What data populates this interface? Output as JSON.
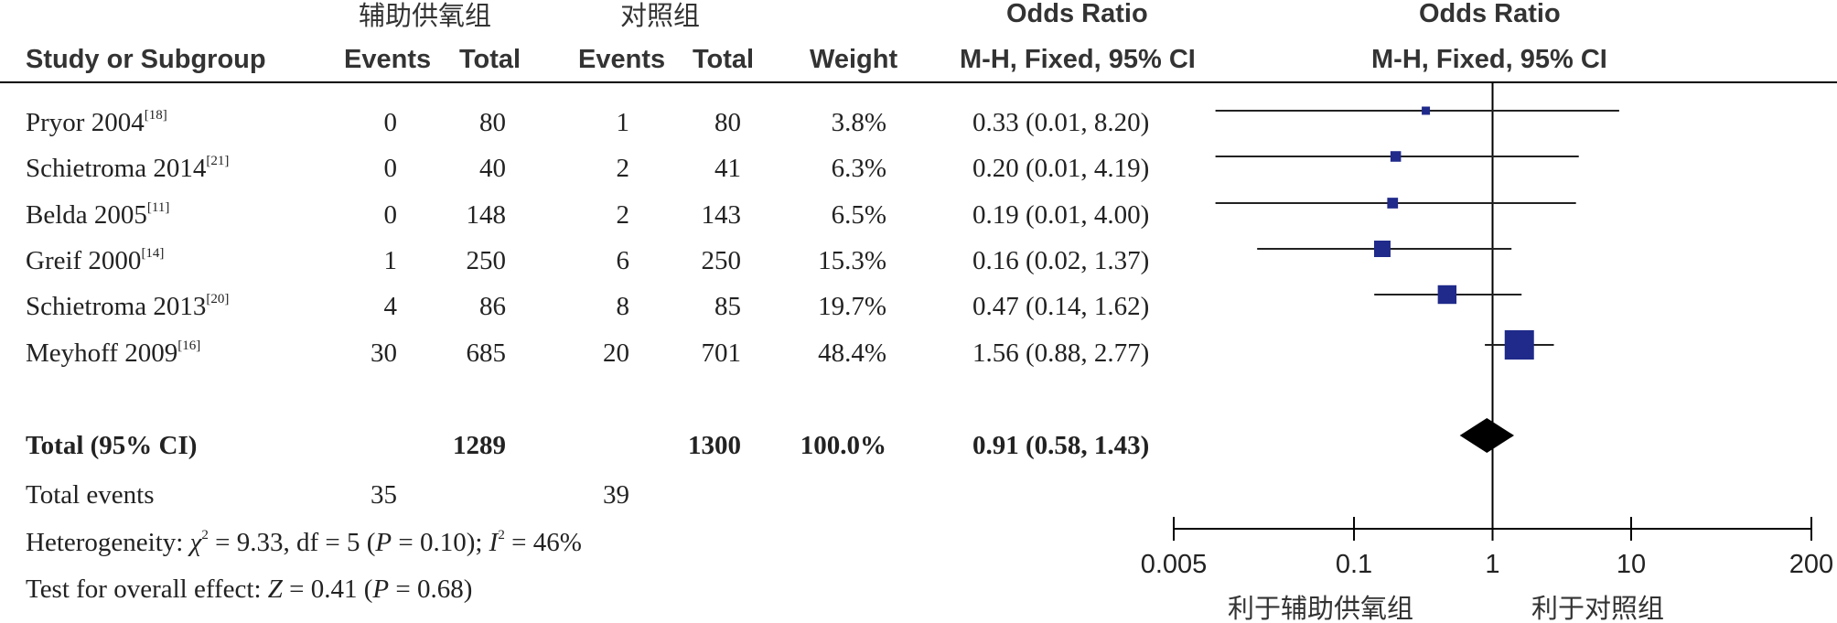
{
  "headers": {
    "group1": "辅助供氧组",
    "group2": "对照组",
    "or_title_left": "Odds Ratio",
    "or_title_right": "Odds Ratio",
    "study": "Study or Subgroup",
    "events1": "Events",
    "total1": "Total",
    "events2": "Events",
    "total2": "Total",
    "weight": "Weight",
    "method_left": "M-H, Fixed, 95% CI",
    "method_right": "M-H, Fixed, 95% CI"
  },
  "studies": [
    {
      "name": "Pryor 2004",
      "ref": "[18]",
      "e1": "0",
      "t1": "80",
      "e2": "1",
      "t2": "80",
      "weight": "3.8%",
      "ci": "0.33 (0.01, 8.20)"
    },
    {
      "name": "Schietroma 2014",
      "ref": "[21]",
      "e1": "0",
      "t1": "40",
      "e2": "2",
      "t2": "41",
      "weight": "6.3%",
      "ci": "0.20 (0.01, 4.19)"
    },
    {
      "name": "Belda 2005",
      "ref": "[11]",
      "e1": "0",
      "t1": "148",
      "e2": "2",
      "t2": "143",
      "weight": "6.5%",
      "ci": "0.19 (0.01, 4.00)"
    },
    {
      "name": "Greif 2000",
      "ref": "[14]",
      "e1": "1",
      "t1": "250",
      "e2": "6",
      "t2": "250",
      "weight": "15.3%",
      "ci": "0.16 (0.02, 1.37)"
    },
    {
      "name": "Schietroma 2013",
      "ref": "[20]",
      "e1": "4",
      "t1": "86",
      "e2": "8",
      "t2": "85",
      "weight": "19.7%",
      "ci": "0.47 (0.14, 1.62)"
    },
    {
      "name": "Meyhoff 2009",
      "ref": "[16]",
      "e1": "30",
      "t1": "685",
      "e2": "20",
      "t2": "701",
      "weight": "48.4%",
      "ci": "1.56 (0.88, 2.77)"
    }
  ],
  "total": {
    "label": "Total (95% CI)",
    "t1": "1289",
    "t2": "1300",
    "weight": "100.0%",
    "ci": "0.91 (0.58, 1.43)"
  },
  "total_events": {
    "label": "Total events",
    "e1": "35",
    "e2": "39"
  },
  "heterogeneity": {
    "prefix": "Heterogeneity: ",
    "chi_sym": "χ",
    "chi_exp": "2",
    "chi_rest": " = 9.33, df = 5 (",
    "p_sym": "P",
    "p_rest": " = 0.10); ",
    "i_sym": "I",
    "i_exp": "2",
    "i_rest": " = 46%"
  },
  "overall": {
    "prefix": "Test for overall effect: ",
    "z_sym": "Z",
    "z_rest": " = 0.41 (",
    "p_sym": "P",
    "p_rest": " = 0.68)"
  },
  "axis": {
    "ticks": [
      "0.005",
      "0.1",
      "1",
      "10",
      "200"
    ],
    "favours_left": "利于辅助供氧组",
    "favours_right": "利于对照组"
  },
  "colors": {
    "marker": "#1f2a8a",
    "diamond": "#000000",
    "line": "#000000"
  },
  "chart_data": {
    "type": "forest",
    "scale": "log",
    "xlim": [
      0.005,
      200
    ],
    "reference_line": 1,
    "studies": [
      {
        "name": "Pryor 2004",
        "or": 0.33,
        "lower": 0.01,
        "upper": 8.2,
        "weight": 3.8
      },
      {
        "name": "Schietroma 2014",
        "or": 0.2,
        "lower": 0.01,
        "upper": 4.19,
        "weight": 6.3
      },
      {
        "name": "Belda 2005",
        "or": 0.19,
        "lower": 0.01,
        "upper": 4.0,
        "weight": 6.5
      },
      {
        "name": "Greif 2000",
        "or": 0.16,
        "lower": 0.02,
        "upper": 1.37,
        "weight": 15.3
      },
      {
        "name": "Schietroma 2013",
        "or": 0.47,
        "lower": 0.14,
        "upper": 1.62,
        "weight": 19.7
      },
      {
        "name": "Meyhoff 2009",
        "or": 1.56,
        "lower": 0.88,
        "upper": 2.77,
        "weight": 48.4
      }
    ],
    "pooled": {
      "or": 0.91,
      "lower": 0.58,
      "upper": 1.43
    }
  }
}
